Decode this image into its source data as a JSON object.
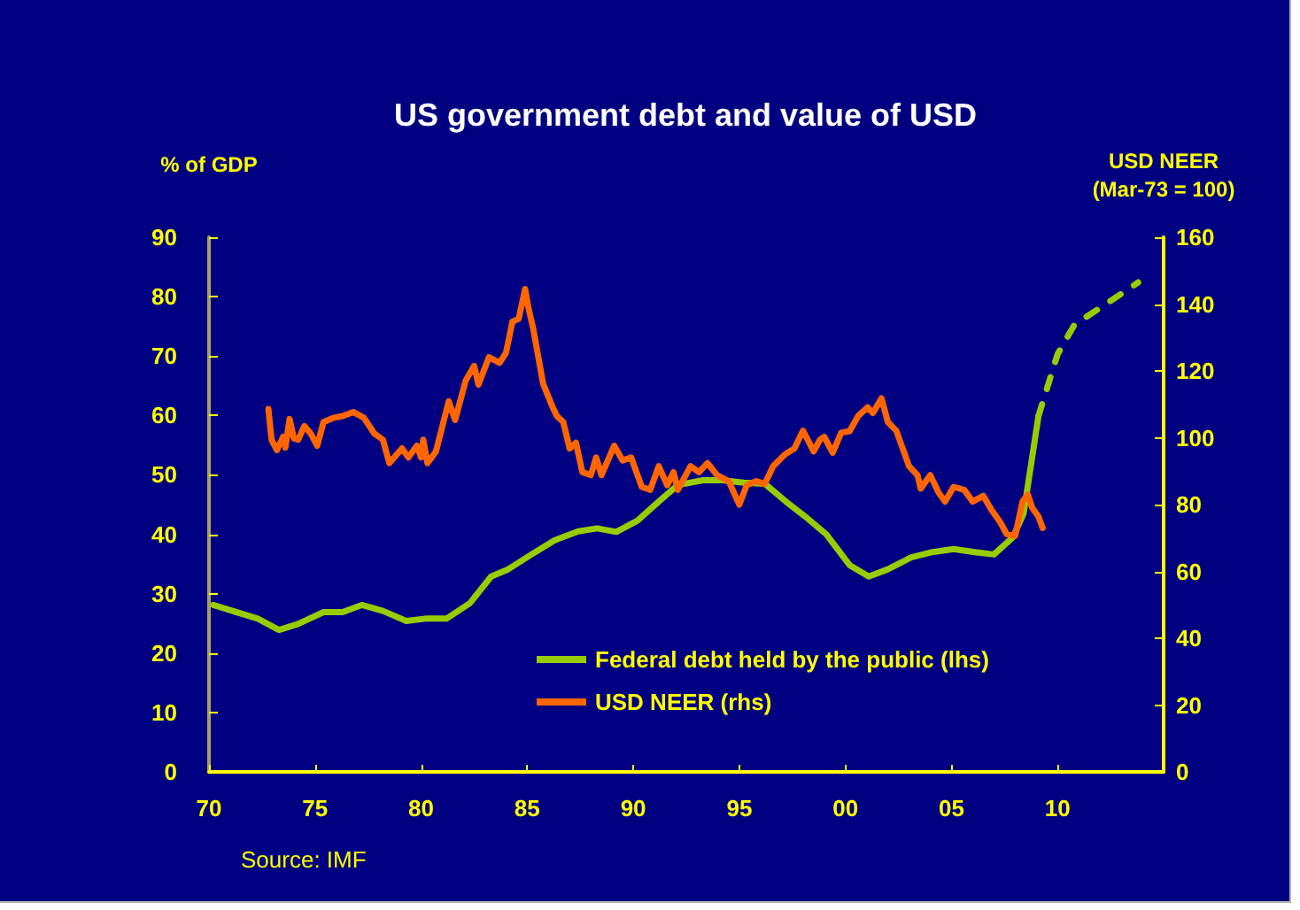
{
  "chart_data": {
    "type": "line",
    "title": "US government debt and value of USD",
    "ylabel": "% of GDP",
    "y2label": "USD NEER\n(Mar-73 = 100)",
    "annotations": [
      "Source: IMF"
    ],
    "xlim": [
      1970,
      2015
    ],
    "xticks": [
      {
        "value": 1970,
        "label": "70"
      },
      {
        "value": 1975,
        "label": "75"
      },
      {
        "value": 1980,
        "label": "80"
      },
      {
        "value": 1985,
        "label": "85"
      },
      {
        "value": 1990,
        "label": "90"
      },
      {
        "value": 1995,
        "label": "95"
      },
      {
        "value": 2000,
        "label": "00"
      },
      {
        "value": 2005,
        "label": "05"
      },
      {
        "value": 2010,
        "label": "10"
      }
    ],
    "ylim": [
      0,
      90
    ],
    "yticks": [
      0,
      10,
      20,
      30,
      40,
      50,
      60,
      70,
      80,
      90
    ],
    "y2lim": [
      0,
      160
    ],
    "y2ticks": [
      0,
      20,
      40,
      60,
      80,
      100,
      120,
      140,
      160
    ],
    "legend": "bottom",
    "marker": "none",
    "series": [
      {
        "name": "Federal debt held by the public (lhs)",
        "color": "#99cc00",
        "line_style": "solid",
        "x": [
          1970.2,
          1972.3,
          1973.3,
          1974.2,
          1975.4,
          1976.3,
          1977.2,
          1978.2,
          1979.3,
          1980.2,
          1981.2,
          1982.3,
          1983.3,
          1984.1,
          1985.2,
          1986.3,
          1987.4,
          1988.3,
          1989.2,
          1990.2,
          1991.2,
          1992.1,
          1993.3,
          1994.2,
          1995.2,
          1996.2,
          1997.2,
          1998.1,
          1999.1,
          2000.2,
          2001.1,
          2002.0,
          2003.1,
          2004.1,
          2005.1,
          2006.1,
          2007.0,
          2007.9,
          2008.4,
          2009.1
        ],
        "values": [
          28.1,
          25.8,
          23.9,
          24.9,
          26.9,
          26.9,
          28.1,
          27.1,
          25.4,
          25.8,
          25.8,
          28.4,
          32.9,
          34.1,
          36.6,
          39.0,
          40.5,
          41.0,
          40.4,
          42.3,
          45.5,
          48.3,
          49.1,
          49.1,
          48.7,
          48.5,
          45.5,
          43.0,
          40.0,
          34.8,
          32.9,
          34.1,
          36.1,
          37.0,
          37.5,
          37.0,
          36.6,
          39.5,
          43.5,
          59.9
        ]
      },
      {
        "color": "#99cc00",
        "line_style": "dashed",
        "x": [
          2009.1,
          2010.0,
          2010.8,
          2012.3,
          2013.8
        ],
        "values": [
          59.9,
          70.3,
          75.3,
          78.8,
          82.4
        ]
      },
      {
        "name": "USD NEER (rhs)",
        "color": "#ff6600",
        "axis": "y2",
        "line_style": "solid",
        "x": [
          1972.8,
          1972.95,
          1973.2,
          1973.5,
          1973.6,
          1973.8,
          1974.0,
          1974.2,
          1974.5,
          1974.8,
          1975.1,
          1975.4,
          1975.9,
          1976.3,
          1976.8,
          1977.3,
          1977.8,
          1978.2,
          1978.5,
          1979.1,
          1979.4,
          1979.8,
          1980.0,
          1980.1,
          1980.3,
          1980.7,
          1981.3,
          1981.6,
          1982.1,
          1982.5,
          1982.7,
          1983.2,
          1983.7,
          1984.0,
          1984.3,
          1984.6,
          1984.9,
          1985.05,
          1985.3,
          1985.75,
          1986.2,
          1986.4,
          1986.7,
          1987.0,
          1987.3,
          1987.6,
          1988.0,
          1988.25,
          1988.5,
          1989.1,
          1989.5,
          1989.9,
          1990.4,
          1990.8,
          1991.2,
          1991.6,
          1991.9,
          1992.1,
          1992.7,
          1993.1,
          1993.5,
          1993.95,
          1994.5,
          1995.0,
          1995.35,
          1995.8,
          1996.2,
          1996.6,
          1997.15,
          1997.6,
          1998.0,
          1998.3,
          1998.5,
          1998.8,
          1999.0,
          1999.4,
          1999.8,
          2000.2,
          2000.6,
          2001.05,
          2001.3,
          2001.7,
          2002.0,
          2002.4,
          2002.7,
          2003.0,
          2003.4,
          2003.55,
          2004.0,
          2004.4,
          2004.7,
          2005.1,
          2005.6,
          2006.0,
          2006.5,
          2006.9,
          2007.3,
          2007.6,
          2008.0,
          2008.35,
          2008.6,
          2008.8,
          2009.1,
          2009.3
        ],
        "values": [
          108.6,
          99.4,
          96.3,
          100.3,
          97.1,
          105.6,
          99.8,
          99.4,
          103.5,
          101.2,
          97.6,
          104.7,
          106.0,
          106.5,
          107.7,
          106.0,
          101.2,
          99.4,
          92.4,
          96.8,
          94.1,
          97.6,
          94.1,
          99.4,
          92.4,
          95.9,
          110.9,
          105.3,
          117.1,
          121.5,
          115.9,
          124.1,
          122.4,
          125.4,
          134.7,
          135.6,
          144.5,
          139.2,
          132.1,
          116.2,
          109.1,
          106.5,
          104.7,
          96.8,
          98.5,
          89.7,
          88.8,
          94.1,
          88.8,
          97.6,
          93.2,
          94.1,
          85.3,
          84.4,
          91.5,
          85.8,
          89.7,
          84.4,
          91.5,
          89.7,
          92.4,
          88.8,
          87.0,
          80.0,
          85.8,
          87.0,
          86.2,
          91.5,
          95.0,
          96.8,
          102.1,
          98.5,
          95.9,
          99.4,
          100.3,
          95.5,
          101.5,
          102.0,
          106.5,
          109.1,
          107.4,
          111.8,
          104.7,
          102.1,
          96.8,
          91.5,
          88.8,
          84.8,
          88.8,
          83.5,
          80.9,
          85.3,
          84.4,
          80.9,
          82.6,
          78.3,
          74.7,
          71.2,
          70.6,
          80.9,
          83.0,
          79.1,
          76.4,
          73.0
        ]
      }
    ]
  }
}
